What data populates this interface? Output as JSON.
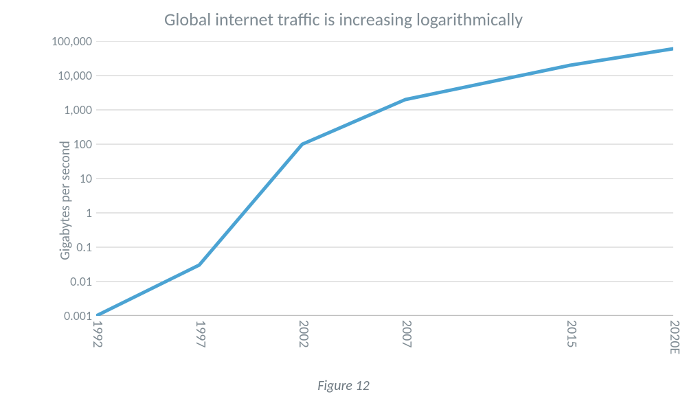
{
  "chart": {
    "type": "line",
    "title": "Global internet traffic is increasing logarithmically",
    "caption": "Figure 12",
    "ylabel": "Gigabytes per second",
    "title_fontsize": 26,
    "label_fontsize": 20,
    "tick_fontsize": 18,
    "line_color": "#4ba3d3",
    "line_width": 5,
    "grid_color": "#c9c9c9",
    "axis_color": "#bfbfbf",
    "background_color": "#ffffff",
    "text_color": "#7f8b93",
    "yscale": "log",
    "ylim_log10": [
      -3,
      5
    ],
    "xlim": [
      1992,
      2020
    ],
    "y_ticks": [
      {
        "label": "100,000",
        "log10": 5
      },
      {
        "label": "10,000",
        "log10": 4
      },
      {
        "label": "1,000",
        "log10": 3
      },
      {
        "label": "100",
        "log10": 2
      },
      {
        "label": "10",
        "log10": 1
      },
      {
        "label": "1",
        "log10": 0
      },
      {
        "label": "0.1",
        "log10": -1
      },
      {
        "label": "0.01",
        "log10": -2
      },
      {
        "label": "0.001",
        "log10": -3
      }
    ],
    "x_ticks": [
      "1992",
      "1997",
      "2002",
      "2007",
      "2015",
      "2020E"
    ],
    "series": [
      {
        "x": 1992,
        "y": 0.001,
        "log10": -3.0
      },
      {
        "x": 1997,
        "y": 0.03,
        "log10": -1.52
      },
      {
        "x": 2002,
        "y": 100,
        "log10": 2.0
      },
      {
        "x": 2007,
        "y": 2000,
        "log10": 3.3
      },
      {
        "x": 2015,
        "y": 20000,
        "log10": 4.3
      },
      {
        "x": 2020,
        "y": 60000,
        "log10": 4.78
      }
    ]
  }
}
